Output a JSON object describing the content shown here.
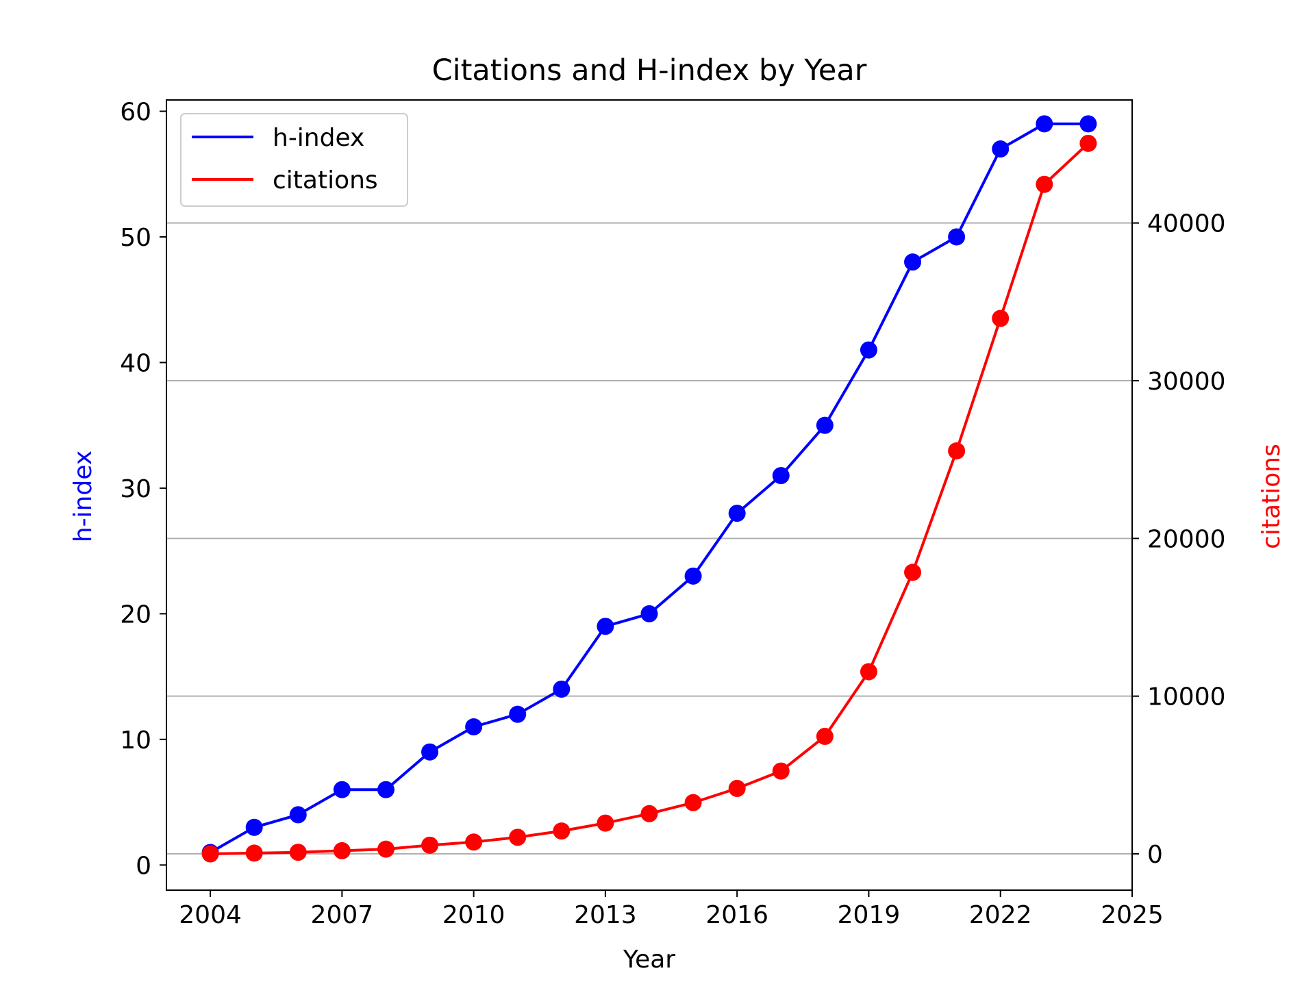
{
  "chart_data": {
    "type": "line",
    "title": "Citations and H-index by Year",
    "xlabel": "Year",
    "ylabel_left": "h-index",
    "ylabel_right": "citations",
    "xlim": [
      2003,
      2025
    ],
    "ylim_left": [
      -2,
      60.9
    ],
    "ylim_right": [
      -2300,
      47800
    ],
    "x_ticks": [
      2004,
      2007,
      2010,
      2013,
      2016,
      2019,
      2022,
      2025
    ],
    "y_ticks_left": [
      0,
      10,
      20,
      30,
      40,
      50,
      60
    ],
    "y_ticks_right": [
      0,
      10000,
      20000,
      30000,
      40000
    ],
    "grid": "horizontal lines on right axis ticks",
    "legend_position": "upper-left",
    "x": [
      2004,
      2005,
      2006,
      2007,
      2008,
      2009,
      2010,
      2011,
      2012,
      2013,
      2014,
      2015,
      2016,
      2017,
      2018,
      2019,
      2020,
      2021,
      2022,
      2023,
      2024
    ],
    "series": [
      {
        "name": "h-index",
        "axis": "left",
        "color": "#0000ff",
        "values": [
          1,
          3,
          4,
          6,
          6,
          9,
          11,
          12,
          14,
          19,
          20,
          23,
          28,
          31,
          35,
          41,
          48,
          50,
          57,
          59,
          59
        ]
      },
      {
        "name": "citations",
        "axis": "right",
        "color": "#ff0000",
        "values": [
          0,
          50,
          100,
          200,
          300,
          550,
          750,
          1050,
          1450,
          1950,
          2550,
          3250,
          4150,
          5250,
          7450,
          11550,
          17850,
          25550,
          33950,
          42450,
          45050
        ]
      }
    ]
  },
  "colors": {
    "left_axis_label": "#0000ff",
    "right_axis_label": "#ff0000",
    "grid": "#b0b0b0",
    "axes": "#000000"
  }
}
